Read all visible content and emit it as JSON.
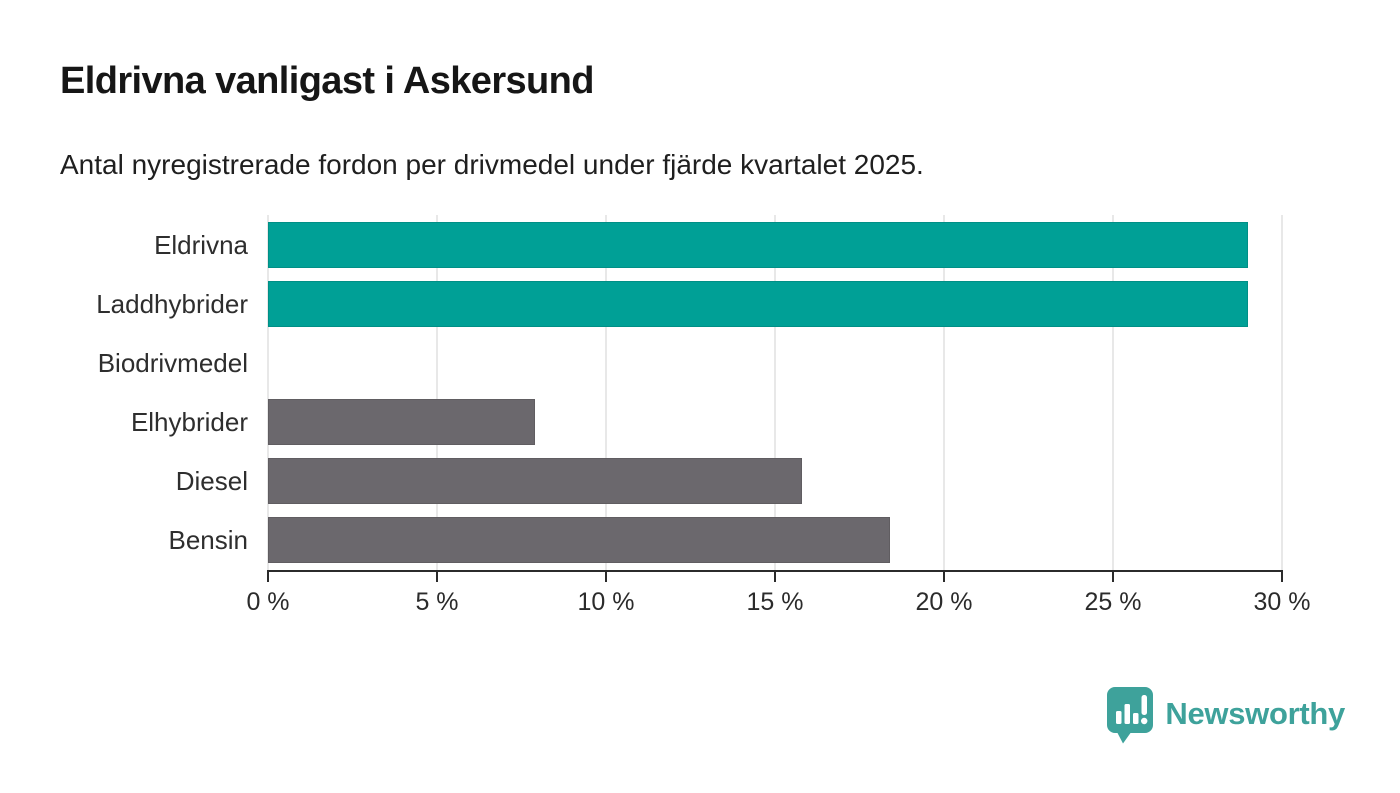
{
  "chart_data": {
    "type": "bar",
    "orientation": "horizontal",
    "title": "Eldrivna vanligast i Askersund",
    "subtitle": "Antal nyregistrerade fordon per drivmedel under fjärde kvartalet 2025.",
    "categories": [
      "Eldrivna",
      "Laddhybrider",
      "Biodrivmedel",
      "Elhybrider",
      "Diesel",
      "Bensin"
    ],
    "values": [
      29.0,
      29.0,
      0,
      7.9,
      15.8,
      18.4
    ],
    "unit": "%",
    "xlabel": "",
    "ylabel": "",
    "xlim": [
      0,
      30
    ],
    "xticks": [
      0,
      5,
      10,
      15,
      20,
      25,
      30
    ],
    "xtick_suffix": " %",
    "grid": true,
    "legend": "none",
    "bar_colors": [
      "#00a096",
      "#00a096",
      "#6b686d",
      "#6b686d",
      "#6b686d",
      "#6b686d"
    ]
  },
  "colors": {
    "accent_teal": "#00a096",
    "bar_gray": "#6b686d",
    "axis": "#2b2b2b",
    "gridline": "#e8e8e8",
    "title_text": "#161616",
    "label_text": "#2e2e2e",
    "logo_teal": "#3ea29b"
  },
  "footer": {
    "brand": "Newsworthy"
  }
}
